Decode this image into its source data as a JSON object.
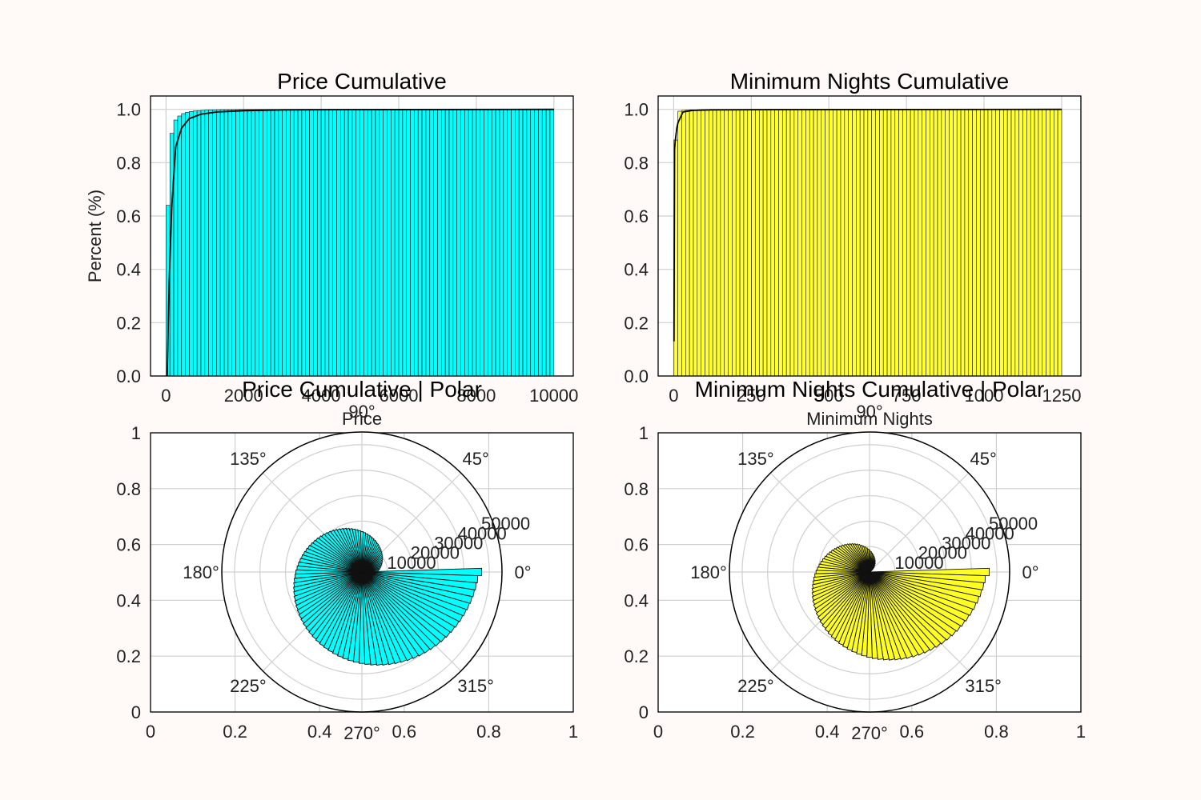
{
  "chart_data": [
    {
      "type": "bar",
      "title": "Price Cumulative",
      "xlabel": "Price",
      "ylabel": "Percent (%)",
      "xlim": [
        -400,
        10500
      ],
      "ylim": [
        0,
        1.05
      ],
      "xticks": [
        0,
        2000,
        4000,
        6000,
        8000,
        10000
      ],
      "yticks": [
        0.0,
        0.2,
        0.4,
        0.6,
        0.8,
        1.0
      ],
      "bar_color": "#00ffff",
      "bins": {
        "start": 0,
        "end": 10000,
        "count": 100
      },
      "values": [
        0.64,
        0.91,
        0.96,
        0.975,
        0.984,
        0.989,
        0.992,
        0.994,
        0.995,
        0.996,
        0.997,
        0.9975,
        0.998,
        0.9985,
        0.999,
        0.999,
        0.9992,
        0.9993,
        0.9994,
        0.9995,
        0.9995,
        0.9996,
        0.9996,
        0.9997,
        0.9997,
        0.9997,
        0.9998,
        0.9998,
        0.9998,
        0.9998,
        0.9998,
        0.9998,
        0.9999,
        0.9999,
        0.9999,
        0.9999,
        0.9999,
        0.9999,
        0.9999,
        0.9999,
        0.9999,
        0.9999,
        0.9999,
        0.9999,
        0.9999,
        0.9999,
        0.9999,
        0.9999,
        0.9999,
        0.9999,
        1.0,
        1.0,
        1.0,
        1.0,
        1.0,
        1.0,
        1.0,
        1.0,
        1.0,
        1.0,
        1.0,
        1.0,
        1.0,
        1.0,
        1.0,
        1.0,
        1.0,
        1.0,
        1.0,
        1.0,
        1.0,
        1.0,
        1.0,
        1.0,
        1.0,
        1.0,
        1.0,
        1.0,
        1.0,
        1.0,
        1.0,
        1.0,
        1.0,
        1.0,
        1.0,
        1.0,
        1.0,
        1.0,
        1.0,
        1.0,
        1.0,
        1.0,
        1.0,
        1.0,
        1.0,
        1.0,
        1.0,
        1.0,
        1.0,
        1.0
      ],
      "line": {
        "x": [
          30,
          80,
          150,
          250,
          400,
          600,
          900,
          1300,
          2000,
          3000,
          5000,
          10000
        ],
        "y": [
          0.0,
          0.35,
          0.64,
          0.86,
          0.93,
          0.965,
          0.982,
          0.99,
          0.995,
          0.998,
          0.999,
          1.0
        ]
      }
    },
    {
      "type": "bar",
      "title": "Minimum Nights Cumulative",
      "xlabel": "Minimum Nights",
      "ylabel": "",
      "xlim": [
        -50,
        1312
      ],
      "ylim": [
        0,
        1.05
      ],
      "xticks": [
        0,
        250,
        500,
        750,
        1000,
        1250
      ],
      "yticks": [
        0.0,
        0.2,
        0.4,
        0.6,
        0.8,
        1.0
      ],
      "bar_color": "#ffff33",
      "bins": {
        "start": 1,
        "end": 1250,
        "count": 100
      },
      "values": [
        0.885,
        0.993,
        0.996,
        0.997,
        0.998,
        0.998,
        0.9985,
        0.999,
        0.999,
        0.9992,
        0.9993,
        0.9994,
        0.9995,
        0.9995,
        0.9996,
        0.9996,
        0.9997,
        0.9997,
        0.9997,
        0.9998,
        0.9998,
        0.9998,
        0.9998,
        0.9999,
        0.9999,
        0.9999,
        0.9999,
        0.9999,
        0.9999,
        0.9999,
        0.9999,
        0.9999,
        0.9999,
        0.9999,
        0.9999,
        0.9999,
        0.9999,
        0.9999,
        0.9999,
        0.9999,
        1.0,
        1.0,
        1.0,
        1.0,
        1.0,
        1.0,
        1.0,
        1.0,
        1.0,
        1.0,
        1.0,
        1.0,
        1.0,
        1.0,
        1.0,
        1.0,
        1.0,
        1.0,
        1.0,
        1.0,
        1.0,
        1.0,
        1.0,
        1.0,
        1.0,
        1.0,
        1.0,
        1.0,
        1.0,
        1.0,
        1.0,
        1.0,
        1.0,
        1.0,
        1.0,
        1.0,
        1.0,
        1.0,
        1.0,
        1.0,
        1.0,
        1.0,
        1.0,
        1.0,
        1.0,
        1.0,
        1.0,
        1.0,
        1.0,
        1.0,
        1.0,
        1.0,
        1.0,
        1.0,
        1.0,
        1.0,
        1.0,
        1.0,
        1.0,
        1.0
      ],
      "line": {
        "x": [
          1,
          2,
          3,
          5,
          10,
          14,
          30,
          45,
          60,
          120,
          365,
          1250
        ],
        "y": [
          0.13,
          0.55,
          0.85,
          0.88,
          0.93,
          0.95,
          0.99,
          0.993,
          0.996,
          0.998,
          0.999,
          1.0
        ]
      }
    },
    {
      "type": "bar",
      "subtype": "polar",
      "title": "Price Cumulative | Polar",
      "bar_color": "#00ffff",
      "rmax": 55000,
      "rticks": [
        10000,
        20000,
        30000,
        40000,
        50000
      ],
      "theta_labels": [
        "0°",
        "45°",
        "90°",
        "135°",
        "180°",
        "225°",
        "270°",
        "315°"
      ],
      "cartesian_ticks": [
        0.0,
        0.2,
        0.4,
        0.6,
        0.8,
        1.0
      ],
      "values": [
        47000,
        45500,
        45100,
        44700,
        44300,
        43900,
        43500,
        43100,
        42700,
        42300,
        41900,
        41500,
        41100,
        40700,
        40300,
        39900,
        39500,
        39100,
        38700,
        38300,
        37900,
        37500,
        37100,
        36700,
        36300,
        35900,
        35500,
        35100,
        34700,
        34300,
        33900,
        33500,
        33100,
        32700,
        32300,
        31900,
        31500,
        31100,
        30700,
        30300,
        29900,
        29500,
        29100,
        28700,
        28300,
        27900,
        27500,
        27100,
        26700,
        26300,
        25900,
        25500,
        25100,
        24700,
        24300,
        23900,
        23500,
        23100,
        22700,
        22300,
        21900,
        21500,
        21100,
        20700,
        20300,
        19900,
        19500,
        19100,
        18700,
        18300,
        17900,
        17500,
        17100,
        16700,
        16300,
        15900,
        15500,
        15100,
        14700,
        14300,
        13900,
        13500,
        13100,
        12700,
        12300,
        11900,
        11500,
        11100,
        10700,
        10300,
        9900,
        9500,
        9100,
        8700,
        8300,
        7900,
        7500,
        7100,
        6700,
        6300
      ]
    },
    {
      "type": "bar",
      "subtype": "polar",
      "title": "Minimum Nights Cumulative | Polar",
      "bar_color": "#ffff22",
      "rmax": 55000,
      "rticks": [
        10000,
        20000,
        30000,
        40000,
        50000
      ],
      "theta_labels": [
        "0°",
        "45°",
        "90°",
        "135°",
        "180°",
        "225°",
        "270°",
        "315°"
      ],
      "cartesian_ticks": [
        0.0,
        0.2,
        0.4,
        0.6,
        0.8,
        1.0
      ],
      "values": [
        47000,
        45500,
        45000,
        44500,
        44000,
        43500,
        43000,
        42500,
        42000,
        41500,
        41000,
        40500,
        40000,
        39500,
        39000,
        38500,
        38000,
        37500,
        37000,
        36500,
        36000,
        35500,
        35000,
        34500,
        34000,
        33500,
        33000,
        32500,
        32000,
        31500,
        31000,
        30500,
        30000,
        29500,
        29000,
        28500,
        28000,
        27500,
        27000,
        26500,
        26000,
        25500,
        25000,
        24500,
        24000,
        23500,
        23000,
        22500,
        22000,
        21500,
        21000,
        20500,
        20000,
        19500,
        19000,
        18500,
        18000,
        17500,
        17000,
        16500,
        16000,
        15500,
        15000,
        14500,
        14000,
        13500,
        13000,
        12500,
        12000,
        11500,
        11000,
        10500,
        10000,
        9500,
        9000,
        8500,
        8000,
        7500,
        7000,
        6500,
        6000,
        5500,
        5000,
        4500,
        4000,
        3500,
        3000,
        2500,
        2000,
        1500,
        1000,
        500,
        300,
        200,
        100,
        80,
        60,
        40,
        20,
        10
      ]
    }
  ]
}
